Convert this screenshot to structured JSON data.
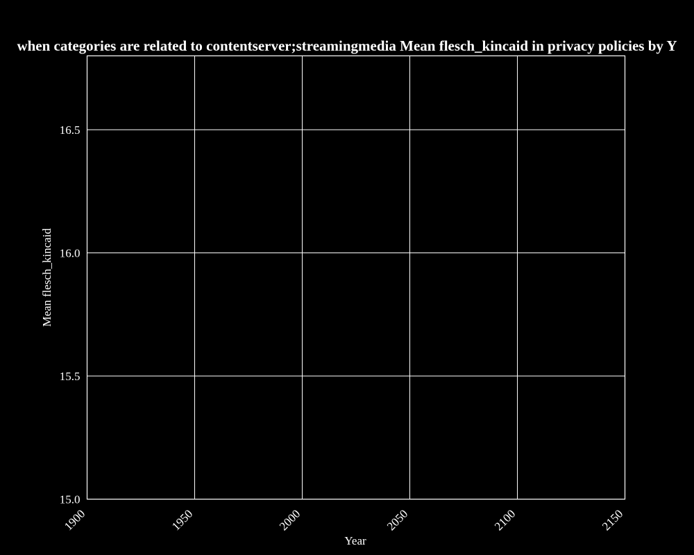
{
  "chart_data": {
    "type": "line",
    "title": "when categories are related to contentserver;streamingmedia Mean flesch_kincaid in privacy policies by Y",
    "xlabel": "Year",
    "ylabel": "Mean flesch_kincaid",
    "xlim": [
      1900,
      2150
    ],
    "ylim": [
      15.0,
      16.8
    ],
    "xticks": [
      1900,
      1950,
      2000,
      2050,
      2100,
      2150
    ],
    "xtick_labels": [
      "1900",
      "1950",
      "2000",
      "2050",
      "2100",
      "2150"
    ],
    "yticks": [
      15.0,
      15.5,
      16.0,
      16.5
    ],
    "ytick_labels": [
      "15.0",
      "15.5",
      "16.0",
      "16.5"
    ],
    "grid": true,
    "series": [
      {
        "x": [],
        "y": []
      }
    ],
    "colors": {
      "background": "#000000",
      "axis": "#ffffff",
      "grid": "#ffffff",
      "text": "#ffffff"
    }
  }
}
